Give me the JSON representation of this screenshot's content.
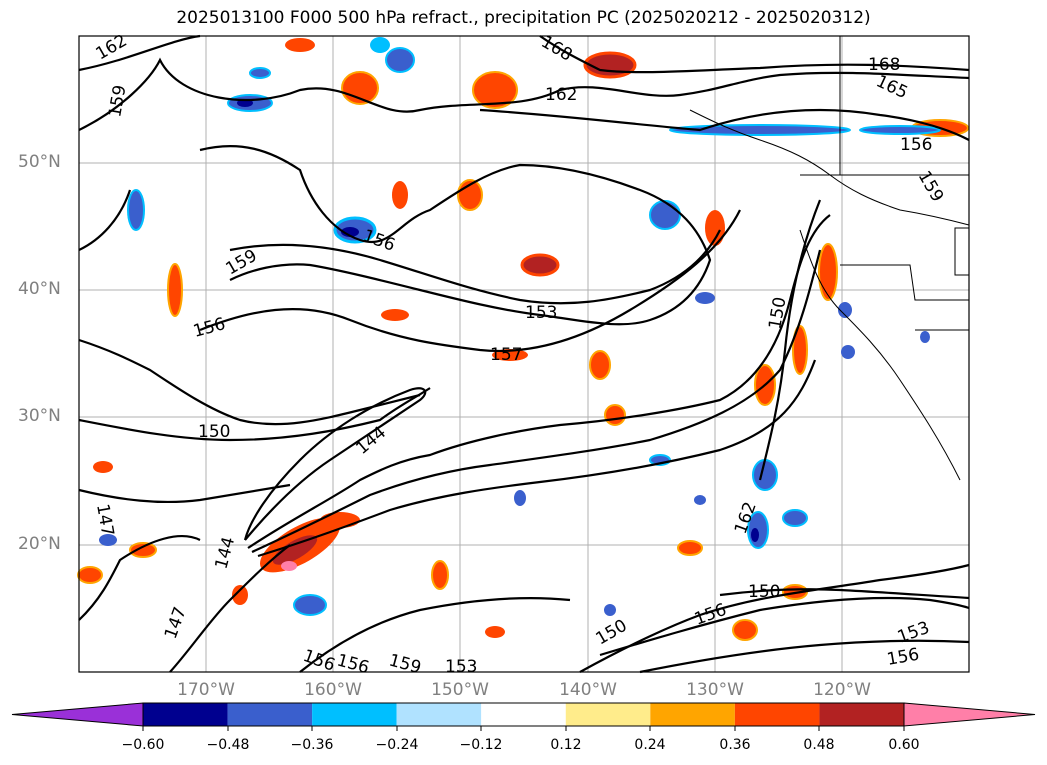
{
  "title": "2025013100 F000 500 hPa refract., precipitation PC (2025020212 - 2025020312)",
  "map": {
    "lat_labels": [
      "50°N",
      "40°N",
      "30°N",
      "20°N"
    ],
    "lon_labels": [
      "170°W",
      "160°W",
      "150°W",
      "140°W",
      "130°W",
      "120°W"
    ],
    "contour_labels": [
      "162",
      "168",
      "159",
      "162",
      "168",
      "165",
      "156",
      "159",
      "156",
      "159",
      "156",
      "153",
      "157",
      "150",
      "150",
      "162",
      "144",
      "147",
      "144",
      "147",
      "150",
      "156",
      "150",
      "156",
      "156",
      "159",
      "153",
      "153",
      "156"
    ]
  },
  "colorbar": {
    "ticks": [
      "−0.60",
      "−0.48",
      "−0.36",
      "−0.24",
      "−0.12",
      "0.12",
      "0.24",
      "0.36",
      "0.48",
      "0.60"
    ],
    "colors": [
      "#9a30d8",
      "#00008f",
      "#3a5fcd",
      "#00bfff",
      "#b0e2ff",
      "#ffffff",
      "#ffec8b",
      "#ffa500",
      "#ff4500",
      "#b22222",
      "#ff7fa8"
    ]
  }
}
